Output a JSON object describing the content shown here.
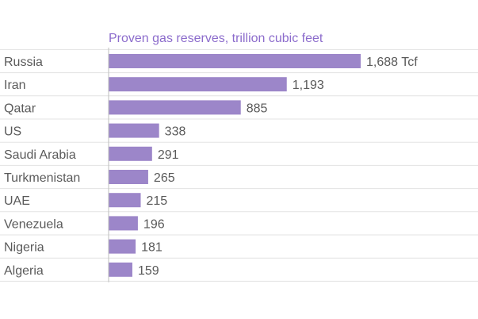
{
  "colors": {
    "bar": "#9c86c9",
    "title": "#8c6ccc",
    "text": "#5a5a5a",
    "gridline": "#e3e3e3",
    "axis": "#bdbdbd",
    "background": "#ffffff"
  },
  "chart_data": {
    "type": "bar",
    "orientation": "horizontal",
    "title": "Proven gas reserves, trillion cubic feet",
    "xlabel": "",
    "ylabel": "",
    "categories": [
      "Russia",
      "Iran",
      "Qatar",
      "US",
      "Saudi Arabia",
      "Turkmenistan",
      "UAE",
      "Venezuela",
      "Nigeria",
      "Algeria"
    ],
    "values": [
      1688,
      1193,
      885,
      338,
      291,
      265,
      215,
      196,
      181,
      159
    ],
    "data_labels": [
      "1,688 Tcf",
      "1,193",
      "885",
      "338",
      "291",
      "265",
      "215",
      "196",
      "181",
      "159"
    ],
    "xlim": [
      0,
      1688
    ],
    "grid": "horizontal-row-lines",
    "legend": "none"
  }
}
